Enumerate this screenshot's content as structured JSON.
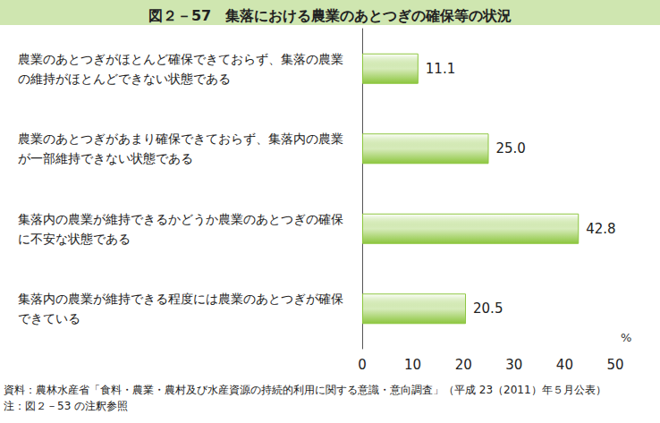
{
  "chart_data": {
    "type": "bar",
    "orientation": "horizontal",
    "title": "図２－57　集落における農業のあとつぎの確保等の状況",
    "categories": [
      "農業のあとつぎがほとんど確保できておらず、集落の農業の維持がほとんどできない状態である",
      "農業のあとつぎがあまり確保できておらず、集落内の農業が一部維持できない状態である",
      "集落内の農業が維持できるかどうか農業のあとつぎの確保に不安な状態である",
      "集落内の農業が維持できる程度には農業のあとつぎが確保できている"
    ],
    "values": [
      11.1,
      25.0,
      42.8,
      20.5
    ],
    "value_labels": [
      "11.1",
      "25.0",
      "42.8",
      "20.5"
    ],
    "data_labels": true,
    "color": "#8dc63f",
    "xlim": [
      0,
      50
    ],
    "xticks": [
      0,
      10,
      20,
      30,
      40,
      50
    ],
    "x_label": "%",
    "grid": false,
    "source": "資料：農林水産省「食料・農業・農村及び水産資源の持続的利用に関する意識・意向調査」（平成 23（2011）年５月公表）",
    "note": "注：図２－53 の注釈参照"
  }
}
